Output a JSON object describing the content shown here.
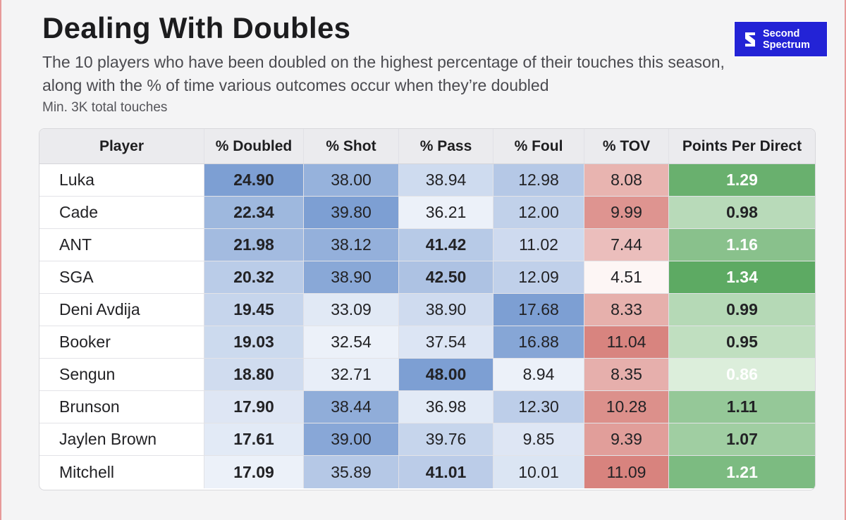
{
  "title": "Dealing With Doubles",
  "subtitle": "The 10 players who have been doubled on the highest percentage of their touches this season, along with the % of time various outcomes occur when they’re doubled",
  "note": "Min. 3K total touches",
  "logo": {
    "line1": "Second",
    "line2": "Spectrum",
    "icon": "second-spectrum-logo-icon",
    "bg": "#2323d6"
  },
  "chart_data": {
    "type": "table",
    "title": "Dealing With Doubles",
    "columns": [
      "Player",
      "% Doubled",
      "% Shot",
      "% Pass",
      "% Foul",
      "% TOV",
      "Points Per Direct"
    ],
    "rows": [
      {
        "player": "Luka",
        "doubled": "24.90",
        "shot": "38.00",
        "pass": "38.94",
        "foul": "12.98",
        "tov": "8.08",
        "ppd": "1.29"
      },
      {
        "player": "Cade",
        "doubled": "22.34",
        "shot": "39.80",
        "pass": "36.21",
        "foul": "12.00",
        "tov": "9.99",
        "ppd": "0.98"
      },
      {
        "player": "ANT",
        "doubled": "21.98",
        "shot": "38.12",
        "pass": "41.42",
        "foul": "11.02",
        "tov": "7.44",
        "ppd": "1.16"
      },
      {
        "player": "SGA",
        "doubled": "20.32",
        "shot": "38.90",
        "pass": "42.50",
        "foul": "12.09",
        "tov": "4.51",
        "ppd": "1.34"
      },
      {
        "player": "Deni Avdija",
        "doubled": "19.45",
        "shot": "33.09",
        "pass": "38.90",
        "foul": "17.68",
        "tov": "8.33",
        "ppd": "0.99"
      },
      {
        "player": "Booker",
        "doubled": "19.03",
        "shot": "32.54",
        "pass": "37.54",
        "foul": "16.88",
        "tov": "11.04",
        "ppd": "0.95"
      },
      {
        "player": "Sengun",
        "doubled": "18.80",
        "shot": "32.71",
        "pass": "48.00",
        "foul": "8.94",
        "tov": "8.35",
        "ppd": "0.86"
      },
      {
        "player": "Brunson",
        "doubled": "17.90",
        "shot": "38.44",
        "pass": "36.98",
        "foul": "12.30",
        "tov": "10.28",
        "ppd": "1.11"
      },
      {
        "player": "Jaylen Brown",
        "doubled": "17.61",
        "shot": "39.00",
        "pass": "39.76",
        "foul": "9.85",
        "tov": "9.39",
        "ppd": "1.07"
      },
      {
        "player": "Mitchell",
        "doubled": "17.09",
        "shot": "35.89",
        "pass": "41.01",
        "foul": "10.01",
        "tov": "11.09",
        "ppd": "1.21"
      }
    ],
    "colors": {
      "blue_scale": [
        "#ecf1f9",
        "#7d9fd3"
      ],
      "red_scale": [
        "#fdf6f5",
        "#d8837e"
      ],
      "green_scale": [
        "#dceedb",
        "#5daa63"
      ]
    }
  }
}
